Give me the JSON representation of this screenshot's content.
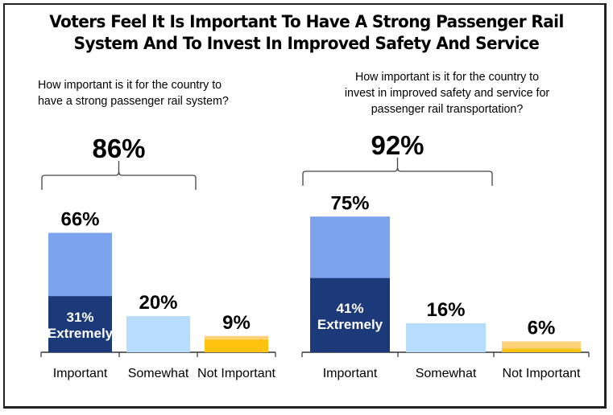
{
  "title_line1": "Voters Feel It Is Important To Have A Strong Passenger Rail",
  "title_line2": "System And To Invest In Improved Safety And Service",
  "colors": {
    "important_light": "#7ba3ee",
    "important_dark": "#1c3a7a",
    "somewhat": "#b7dcfd",
    "not_important_light": "#ffd27a",
    "not_important_dark": "#ffc20e",
    "axis": "#333333",
    "bracket": "#444444"
  },
  "chart_data": [
    {
      "type": "bar",
      "question_lines": [
        "How important is it for the country to",
        "have a strong passenger rail system?"
      ],
      "categories": [
        "Important",
        "Somewhat",
        "Not Important"
      ],
      "values": [
        66,
        20,
        9
      ],
      "value_labels": [
        "66%",
        "20%",
        "9%"
      ],
      "sub_segments": {
        "Important": {
          "value": 31,
          "label_lines": [
            "31%",
            "Extremely"
          ]
        },
        "Not Important": {
          "value": 7
        }
      },
      "bracket": {
        "spans": [
          "Important",
          "Somewhat"
        ],
        "total": 86,
        "label": "86%"
      },
      "ylabel": "",
      "xlabel": "",
      "ylim": [
        0,
        100
      ],
      "grid": false,
      "legend": "none"
    },
    {
      "type": "bar",
      "question_lines": [
        "How important is it for the country to",
        "invest in improved safety and service for",
        "passenger rail transportation?"
      ],
      "categories": [
        "Important",
        "Somewhat",
        "Not Important"
      ],
      "values": [
        75,
        16,
        6
      ],
      "value_labels": [
        "75%",
        "16%",
        "6%"
      ],
      "sub_segments": {
        "Important": {
          "value": 41,
          "label_lines": [
            "41%",
            "Extremely"
          ]
        },
        "Not Important": {
          "value": 2
        }
      },
      "bracket": {
        "spans": [
          "Important",
          "Somewhat"
        ],
        "total": 92,
        "label": "92%"
      },
      "ylabel": "",
      "xlabel": "",
      "ylim": [
        0,
        100
      ],
      "grid": false,
      "legend": "none"
    }
  ]
}
